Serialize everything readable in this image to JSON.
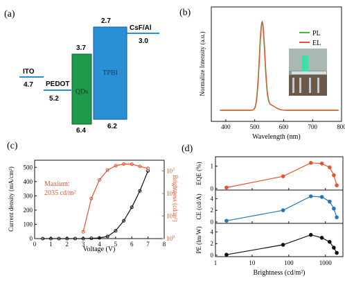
{
  "chart_data": [
    {
      "panel_label": "(a)",
      "type": "other",
      "levels": [
        {
          "name": "ITO",
          "value": "4.7"
        },
        {
          "name": "PEDOT",
          "value": "5.2"
        },
        {
          "name": "QDs",
          "top": "3.7",
          "bottom": "6.4",
          "color": "#1f9a4a"
        },
        {
          "name": "TPBI",
          "top": "2.7",
          "bottom": "6.2",
          "color": "#2b8fd6"
        },
        {
          "name": "CsF/Al",
          "value": "3.0"
        }
      ]
    },
    {
      "panel_label": "(b)",
      "type": "line",
      "xlabel": "Wavelength (nm)",
      "ylabel": "Normalize Intensity (a.u.)",
      "xlim": [
        350,
        800
      ],
      "xticks": [
        "400",
        "500",
        "600",
        "700",
        "800"
      ],
      "peak": 525,
      "fwhm": 22,
      "series": [
        {
          "name": "PL",
          "color": "#4fb848"
        },
        {
          "name": "EL",
          "color": "#e8532f"
        }
      ],
      "inset": "device-photo"
    },
    {
      "panel_label": "(c)",
      "type": "line",
      "xlabel": "Voltage (V)",
      "ylabel": "Current density (mA/cm²)",
      "ylabel_right": "Brightness (cd/m²)",
      "xlim": [
        0,
        8
      ],
      "ylim": [
        0,
        550
      ],
      "ylim_right_log": [
        1,
        3000
      ],
      "xticks": [
        "0",
        "1",
        "2",
        "3",
        "4",
        "5",
        "6",
        "7",
        "8"
      ],
      "yticks": [
        "0",
        "100",
        "200",
        "300",
        "400",
        "500"
      ],
      "annotation": {
        "line1": "Maxium:",
        "line2": "2035 cd/m²"
      },
      "series": [
        {
          "color": "#111111",
          "axis": "left",
          "x": [
            0.5,
            1,
            1.5,
            2,
            2.5,
            3,
            3.5,
            4,
            4.5,
            5,
            5.5,
            6,
            6.5,
            7
          ],
          "y": [
            0,
            0,
            0,
            0,
            0,
            0,
            2,
            5,
            15,
            55,
            125,
            220,
            335,
            475
          ]
        },
        {
          "color": "#e8532f",
          "axis": "right",
          "x": [
            3.0,
            3.5,
            4.0,
            4.5,
            5.0,
            5.5,
            6.0,
            6.5,
            7.0
          ],
          "y": [
            2,
            60,
            400,
            1100,
            1700,
            2035,
            2000,
            1600,
            1300
          ]
        }
      ]
    },
    {
      "panel_label": "(d)",
      "type": "line",
      "xlabel": "Brightness (cd/m²)",
      "xscale": "log",
      "xlim": [
        1,
        3000
      ],
      "xticks": [
        "1",
        "10",
        "100",
        "1000"
      ],
      "subplots": [
        {
          "ylabel": "EQE (%)",
          "yticks": [
            "0",
            "1"
          ],
          "ylim": [
            0,
            1.3
          ],
          "color": "#e8532f",
          "x": [
            2,
            70,
            400,
            800,
            1300,
            1700,
            2035
          ],
          "y": [
            0.05,
            0.55,
            1.15,
            1.12,
            0.95,
            0.6,
            0.15
          ]
        },
        {
          "ylabel": "CE (cd/A)",
          "yticks": [
            "0",
            "2",
            "4"
          ],
          "ylim": [
            0,
            5
          ],
          "color": "#2477b3",
          "x": [
            2,
            70,
            400,
            800,
            1300,
            1700,
            2035
          ],
          "y": [
            0.2,
            2.0,
            4.4,
            4.3,
            3.5,
            2.3,
            0.8
          ]
        },
        {
          "ylabel": "PE (lm/W)",
          "yticks": [
            "0",
            "2",
            "4"
          ],
          "ylim": [
            0,
            5
          ],
          "color": "#111111",
          "x": [
            2,
            70,
            400,
            800,
            1300,
            1700,
            2035
          ],
          "y": [
            0.1,
            1.8,
            3.5,
            3.0,
            2.3,
            1.3,
            0.4
          ]
        }
      ]
    }
  ]
}
